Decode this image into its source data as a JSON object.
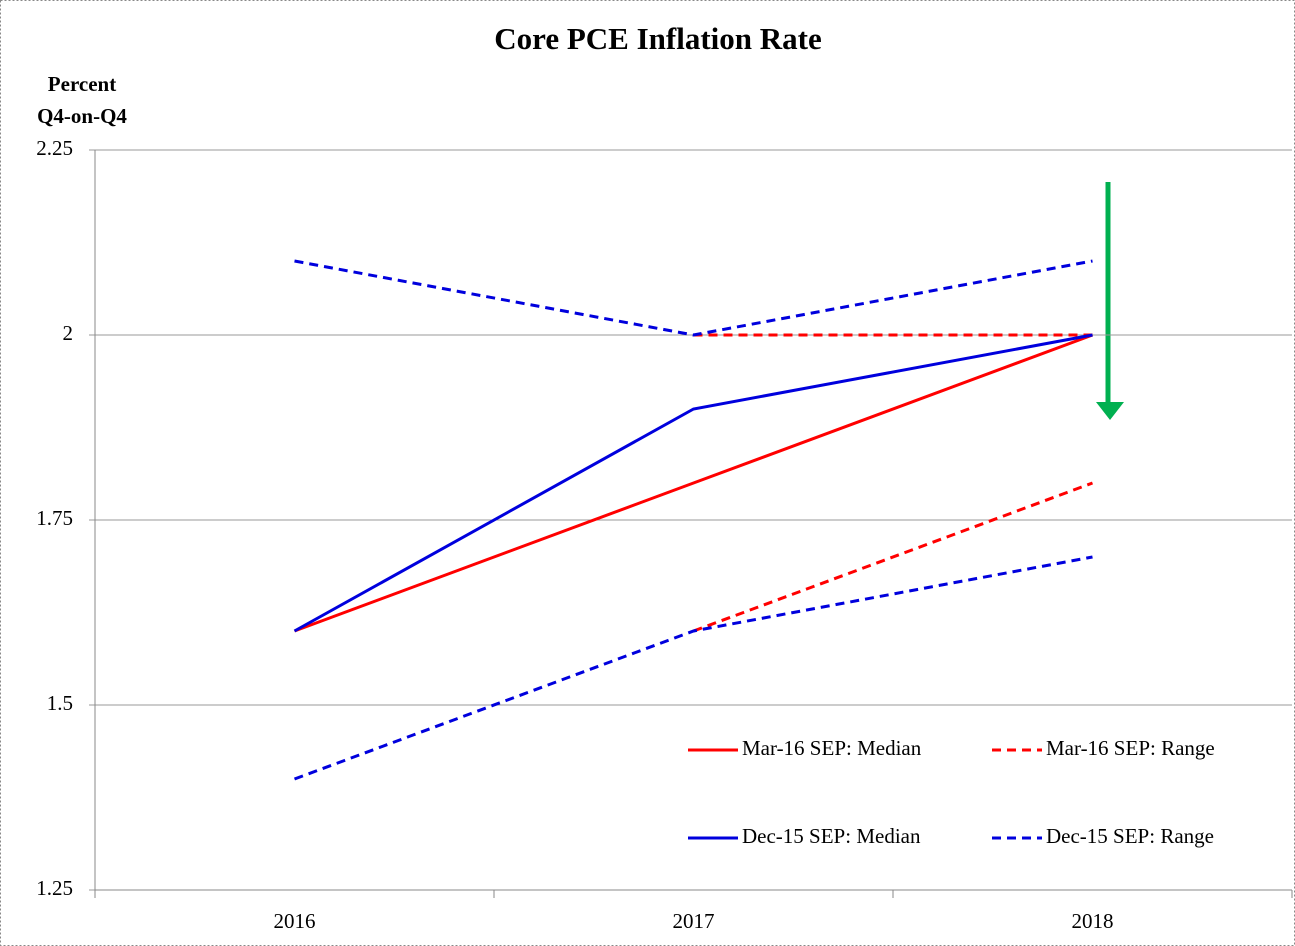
{
  "chart_data": {
    "type": "line",
    "title": "Core PCE Inflation Rate",
    "y_label": [
      "Percent",
      "Q4-on-Q4"
    ],
    "categories": [
      "2016",
      "2017",
      "2018"
    ],
    "ylim": [
      1.25,
      2.25
    ],
    "yticks": [
      1.25,
      1.5,
      1.75,
      2,
      2.25
    ],
    "grid": true,
    "legend": "lower right",
    "series": [
      {
        "name": "Mar-16 SEP: Median",
        "color": "#ff0000",
        "dashed": false,
        "values": [
          1.6,
          1.8,
          2.0
        ]
      },
      {
        "name": "Mar-16 SEP: Range",
        "color": "#ff0000",
        "dashed": true,
        "low": [
          null,
          1.6,
          1.8
        ],
        "high": [
          null,
          2.0,
          2.0
        ]
      },
      {
        "name": "Dec-15 SEP: Median",
        "color": "#0000dd",
        "dashed": false,
        "values": [
          1.6,
          1.9,
          2.0
        ]
      },
      {
        "name": "Dec-15 SEP: Range",
        "color": "#0000dd",
        "dashed": true,
        "low": [
          1.4,
          1.6,
          1.7
        ],
        "high": [
          2.1,
          2.0,
          2.1
        ]
      }
    ]
  }
}
